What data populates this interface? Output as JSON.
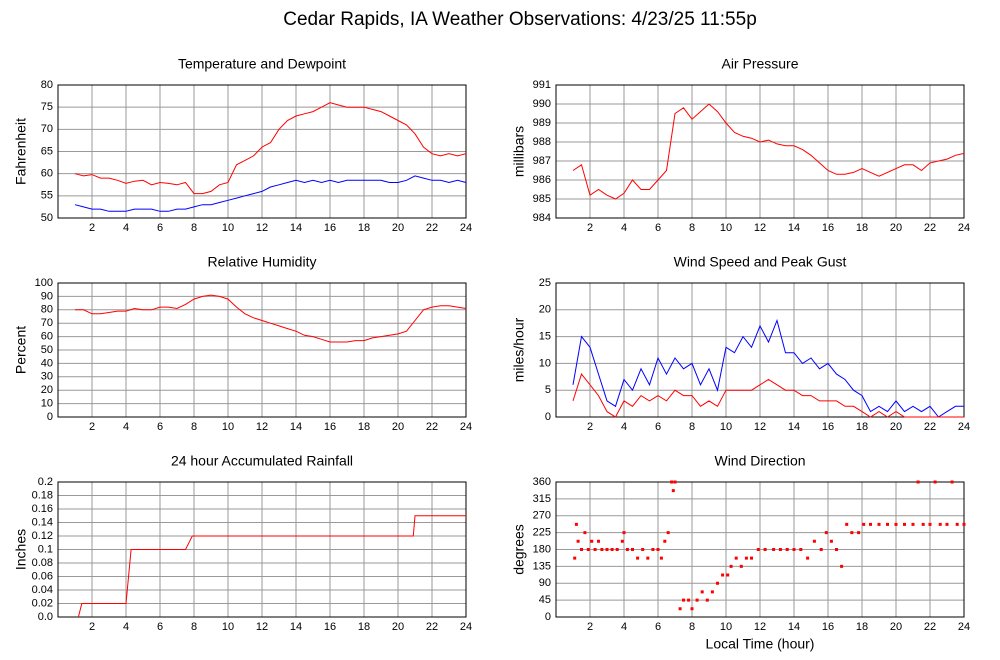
{
  "title": "Cedar Rapids, IA Weather Observations: 4/23/25 11:55p",
  "chart_data": [
    {
      "type": "line",
      "title": "Temperature and Dewpoint",
      "ylabel": "Fahrenheit",
      "grid": true,
      "xlim": [
        0,
        24
      ],
      "xticks": [
        2,
        4,
        6,
        8,
        10,
        12,
        14,
        16,
        18,
        20,
        22,
        24
      ],
      "ylim": [
        50,
        80
      ],
      "yticks": [
        50,
        55,
        60,
        65,
        70,
        75,
        80
      ],
      "x": [
        1,
        1.5,
        2,
        2.5,
        3,
        3.5,
        4,
        4.5,
        5,
        5.5,
        6,
        6.5,
        7,
        7.5,
        8,
        8.5,
        9,
        9.5,
        10,
        10.5,
        11,
        11.5,
        12,
        12.5,
        13,
        13.5,
        14,
        14.5,
        15,
        15.5,
        16,
        16.5,
        17,
        17.5,
        18,
        18.5,
        19,
        19.5,
        20,
        20.5,
        21,
        21.5,
        22,
        22.5,
        23,
        23.5,
        24
      ],
      "series": [
        {
          "color": "#ff0000",
          "values": [
            60,
            59.5,
            59.8,
            59,
            59,
            58.5,
            57.8,
            58.3,
            58.5,
            57.5,
            58,
            57.8,
            57.5,
            58,
            55.5,
            55.5,
            56,
            57.5,
            58,
            62,
            63,
            64,
            66,
            67,
            70,
            72,
            73,
            73.5,
            74,
            75,
            76,
            75.5,
            75,
            75,
            75,
            74.5,
            74,
            73,
            72,
            71,
            69,
            66,
            64.5,
            64,
            64.5,
            64,
            64.5
          ]
        },
        {
          "color": "#0000ff",
          "values": [
            53,
            52.5,
            52,
            52,
            51.5,
            51.5,
            51.5,
            52,
            52,
            52,
            51.5,
            51.5,
            52,
            52,
            52.5,
            53,
            53,
            53.5,
            54,
            54.5,
            55,
            55.5,
            56,
            57,
            57.5,
            58,
            58.5,
            58,
            58.5,
            58,
            58.5,
            58,
            58.5,
            58.5,
            58.5,
            58.5,
            58.5,
            58,
            58,
            58.5,
            59.5,
            59,
            58.5,
            58.5,
            58,
            58.5,
            58
          ]
        }
      ]
    },
    {
      "type": "line",
      "title": "Air Pressure",
      "ylabel": "millibars",
      "grid": true,
      "xlim": [
        0,
        24
      ],
      "xticks": [
        2,
        4,
        6,
        8,
        10,
        12,
        14,
        16,
        18,
        20,
        22,
        24
      ],
      "ylim": [
        984,
        991
      ],
      "yticks": [
        984,
        985,
        986,
        987,
        988,
        989,
        990,
        991
      ],
      "x": [
        1,
        1.5,
        2,
        2.5,
        3,
        3.5,
        4,
        4.5,
        5,
        5.5,
        6,
        6.5,
        7,
        7.5,
        8,
        8.5,
        9,
        9.5,
        10,
        10.5,
        11,
        11.5,
        12,
        12.5,
        13,
        13.5,
        14,
        14.5,
        15,
        15.5,
        16,
        16.5,
        17,
        17.5,
        18,
        18.5,
        19,
        19.5,
        20,
        20.5,
        21,
        21.5,
        22,
        22.5,
        23,
        23.5,
        24
      ],
      "series": [
        {
          "color": "#ff0000",
          "values": [
            986.5,
            986.8,
            985.2,
            985.5,
            985.2,
            985,
            985.3,
            986,
            985.5,
            985.5,
            986,
            986.5,
            989.5,
            989.8,
            989.2,
            989.6,
            990,
            989.6,
            989,
            988.5,
            988.3,
            988.2,
            988,
            988.1,
            987.9,
            987.8,
            987.8,
            987.6,
            987.3,
            986.9,
            986.5,
            986.3,
            986.3,
            986.4,
            986.6,
            986.4,
            986.2,
            986.4,
            986.6,
            986.8,
            986.8,
            986.5,
            986.9,
            987,
            987.1,
            987.3,
            987.4
          ]
        }
      ]
    },
    {
      "type": "line",
      "title": "Relative Humidity",
      "ylabel": "Percent",
      "grid": true,
      "xlim": [
        0,
        24
      ],
      "xticks": [
        2,
        4,
        6,
        8,
        10,
        12,
        14,
        16,
        18,
        20,
        22,
        24
      ],
      "ylim": [
        0,
        100
      ],
      "yticks": [
        0,
        10,
        20,
        30,
        40,
        50,
        60,
        70,
        80,
        90,
        100
      ],
      "x": [
        1,
        1.5,
        2,
        2.5,
        3,
        3.5,
        4,
        4.5,
        5,
        5.5,
        6,
        6.5,
        7,
        7.5,
        8,
        8.5,
        9,
        9.5,
        10,
        10.5,
        11,
        11.5,
        12,
        12.5,
        13,
        13.5,
        14,
        14.5,
        15,
        15.5,
        16,
        16.5,
        17,
        17.5,
        18,
        18.5,
        19,
        19.5,
        20,
        20.5,
        21,
        21.5,
        22,
        22.5,
        23,
        23.5,
        24
      ],
      "series": [
        {
          "color": "#ff0000",
          "values": [
            80,
            80,
            77,
            77,
            78,
            79,
            79,
            81,
            80,
            80,
            82,
            82,
            81,
            84,
            88,
            90,
            91,
            90,
            88,
            82,
            77,
            74,
            72,
            70,
            68,
            66,
            64,
            61,
            60,
            58,
            56,
            56,
            56,
            57,
            57,
            59,
            60,
            61,
            62,
            64,
            72,
            80,
            82,
            83,
            83,
            82,
            81
          ]
        }
      ]
    },
    {
      "type": "line",
      "title": "Wind Speed and Peak Gust",
      "ylabel": "miles/hour",
      "grid": true,
      "xlim": [
        0,
        24
      ],
      "xticks": [
        2,
        4,
        6,
        8,
        10,
        12,
        14,
        16,
        18,
        20,
        22,
        24
      ],
      "ylim": [
        0,
        25
      ],
      "yticks": [
        0,
        5,
        10,
        15,
        20,
        25
      ],
      "x": [
        1,
        1.5,
        2,
        2.5,
        3,
        3.5,
        4,
        4.5,
        5,
        5.5,
        6,
        6.5,
        7,
        7.5,
        8,
        8.5,
        9,
        9.5,
        10,
        10.5,
        11,
        11.5,
        12,
        12.5,
        13,
        13.5,
        14,
        14.5,
        15,
        15.5,
        16,
        16.5,
        17,
        17.5,
        18,
        18.5,
        19,
        19.5,
        20,
        20.5,
        21,
        21.5,
        22,
        22.5,
        23,
        23.5,
        24
      ],
      "series": [
        {
          "color": "#0000ff",
          "values": [
            6,
            15,
            13,
            8,
            3,
            2,
            7,
            5,
            9,
            6,
            11,
            8,
            11,
            9,
            10,
            6,
            9,
            5,
            13,
            12,
            15,
            13,
            17,
            14,
            18,
            12,
            12,
            10,
            11,
            9,
            10,
            8,
            7,
            5,
            4,
            1,
            2,
            1,
            3,
            1,
            2,
            1,
            2,
            0,
            1,
            2,
            2
          ]
        },
        {
          "color": "#ff0000",
          "values": [
            3,
            8,
            6,
            4,
            1,
            0,
            3,
            2,
            4,
            3,
            4,
            3,
            5,
            4,
            4,
            2,
            3,
            2,
            5,
            5,
            5,
            5,
            6,
            7,
            6,
            5,
            5,
            4,
            4,
            3,
            3,
            3,
            2,
            2,
            1,
            0,
            1,
            0,
            1,
            0,
            0,
            0,
            0,
            0,
            0,
            0,
            0
          ]
        }
      ]
    },
    {
      "type": "line",
      "title": "24 hour Accumulated Rainfall",
      "ylabel": "Inches",
      "grid": true,
      "xlim": [
        0,
        24
      ],
      "xticks": [
        2,
        4,
        6,
        8,
        10,
        12,
        14,
        16,
        18,
        20,
        22,
        24
      ],
      "ylim": [
        0,
        0.2
      ],
      "yticks": [
        {
          "value": 0,
          "label": "0.0"
        },
        0.02,
        0.04,
        0.06,
        0.08,
        0.1,
        0.12,
        0.14,
        0.16,
        0.18,
        0.2
      ],
      "x": [
        1.2,
        1.4,
        4.0,
        4.3,
        7.5,
        7.7,
        7.9,
        20.9,
        21.0,
        24
      ],
      "series": [
        {
          "color": "#ff0000",
          "values": [
            0,
            0.02,
            0.02,
            0.1,
            0.1,
            0.11,
            0.12,
            0.12,
            0.15,
            0.15
          ]
        }
      ]
    },
    {
      "type": "scatter",
      "title": "Wind Direction",
      "ylabel": "degrees",
      "xlabel": "Local Time (hour)",
      "grid": true,
      "xlim": [
        0,
        24
      ],
      "xticks": [
        2,
        4,
        6,
        8,
        10,
        12,
        14,
        16,
        18,
        20,
        22,
        24
      ],
      "ylim": [
        0,
        360
      ],
      "yticks": [
        0,
        45,
        90,
        135,
        180,
        225,
        270,
        315,
        360
      ],
      "x": [
        1.1,
        1.2,
        1.3,
        1.5,
        1.7,
        1.9,
        2.1,
        2.3,
        2.5,
        2.7,
        3,
        3.3,
        3.6,
        3.9,
        4,
        4.2,
        4.5,
        4.8,
        5.1,
        5.4,
        5.7,
        6,
        6.2,
        6.4,
        6.6,
        6.8,
        6.9,
        7,
        7.3,
        7.5,
        7.8,
        8,
        8.3,
        8.6,
        8.9,
        9.2,
        9.5,
        9.8,
        10.1,
        10.3,
        10.6,
        10.9,
        11.2,
        11.5,
        11.9,
        12.3,
        12.8,
        13.2,
        13.6,
        14,
        14.4,
        14.8,
        15.2,
        15.6,
        15.9,
        16.2,
        16.5,
        16.8,
        17.1,
        17.4,
        17.8,
        18.1,
        18.5,
        19,
        19.5,
        20,
        20.5,
        21,
        21.3,
        21.6,
        22,
        22.3,
        22.6,
        23,
        23.3,
        23.6,
        24
      ],
      "series": [
        {
          "color": "#ff0000",
          "values": [
            157,
            247,
            202,
            180,
            225,
            180,
            202,
            180,
            202,
            180,
            180,
            180,
            180,
            202,
            225,
            180,
            180,
            157,
            180,
            157,
            180,
            180,
            157,
            202,
            225,
            360,
            337,
            360,
            22,
            45,
            45,
            22,
            45,
            67,
            45,
            67,
            90,
            112,
            112,
            135,
            157,
            135,
            157,
            157,
            180,
            180,
            180,
            180,
            180,
            180,
            180,
            157,
            202,
            180,
            225,
            202,
            180,
            135,
            247,
            225,
            225,
            247,
            247,
            247,
            247,
            247,
            247,
            247,
            360,
            247,
            247,
            360,
            247,
            247,
            360,
            247,
            247
          ]
        }
      ]
    }
  ]
}
